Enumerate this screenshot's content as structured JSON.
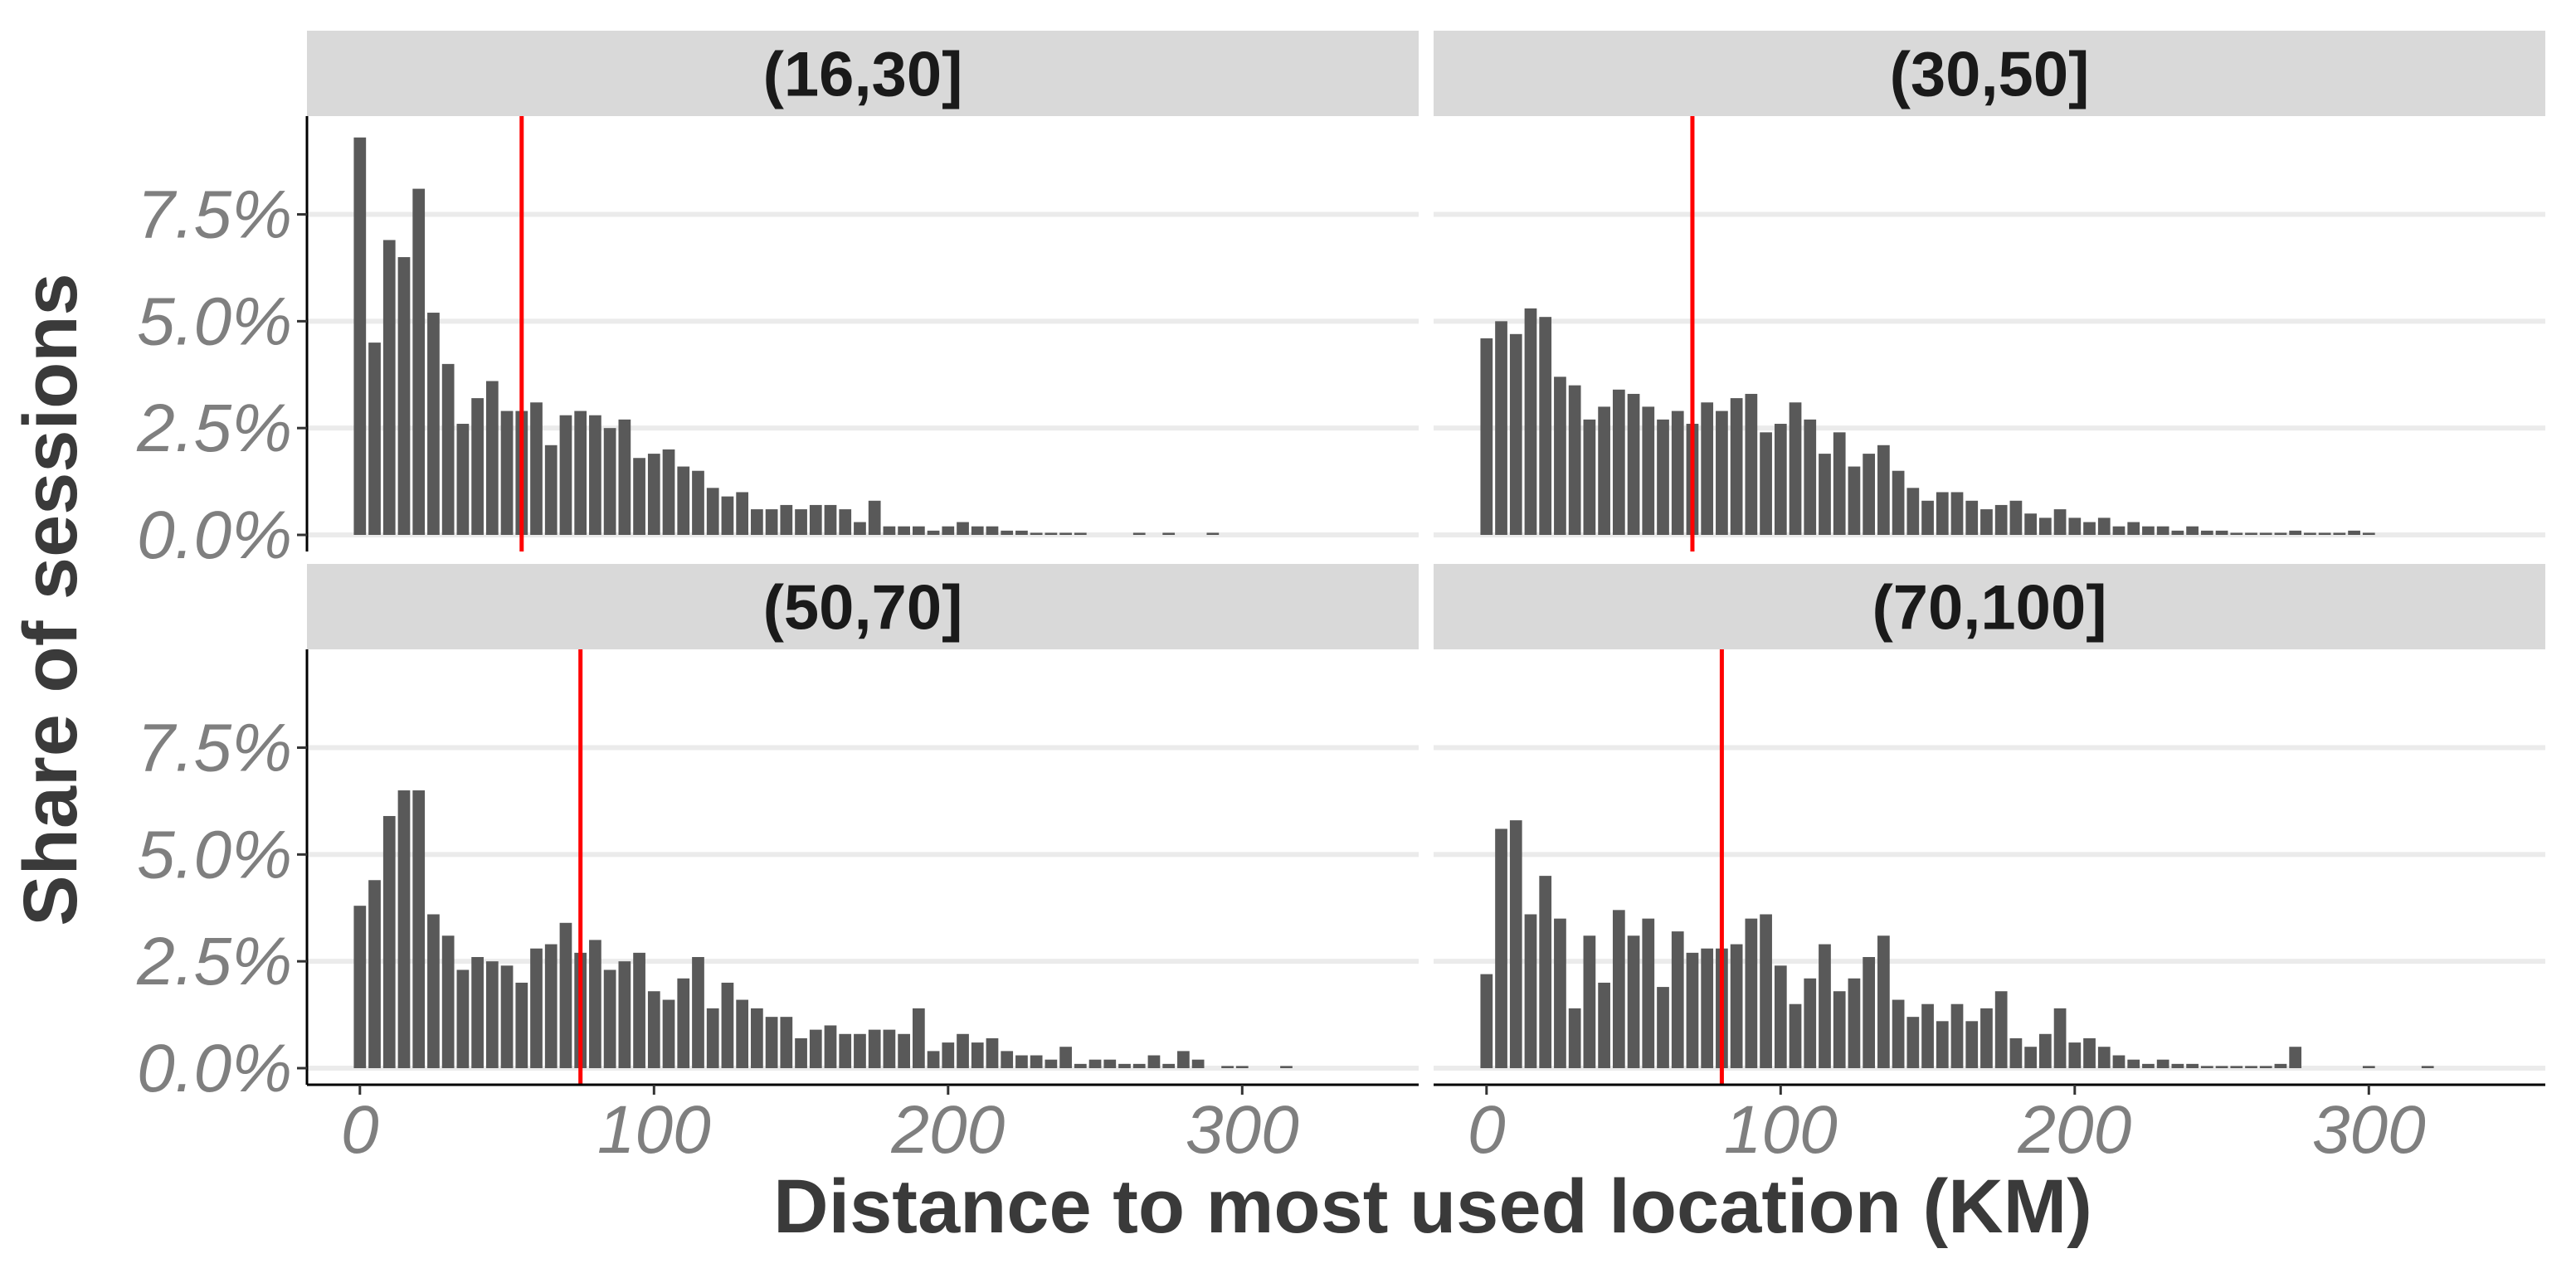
{
  "chart_data": {
    "type": "bar",
    "xlabel": "Distance to most used location (KM)",
    "ylabel": "Share of sessions",
    "y_ticks": [
      "0.0%",
      "2.5%",
      "5.0%",
      "7.5%"
    ],
    "y_tick_values": [
      0,
      2.5,
      5.0,
      7.5
    ],
    "x_ticks": [
      "0",
      "100",
      "200",
      "300"
    ],
    "x_tick_values": [
      0,
      100,
      200,
      300
    ],
    "xlim": [
      -18,
      360
    ],
    "ylim": [
      0,
      9.8
    ],
    "bin_width_km": 5,
    "grid": "horizontal",
    "colors": {
      "bar": "#595959",
      "median_line": "#ff0000",
      "strip": "#d9d9d9",
      "grid": "#ebebeb"
    },
    "panels": [
      {
        "label": "(16,30]",
        "vline": 55,
        "x": [
          0,
          5,
          10,
          15,
          20,
          25,
          30,
          35,
          40,
          45,
          50,
          55,
          60,
          65,
          70,
          75,
          80,
          85,
          90,
          95,
          100,
          105,
          110,
          115,
          120,
          125,
          130,
          135,
          140,
          145,
          150,
          155,
          160,
          165,
          170,
          175,
          180,
          185,
          190,
          195,
          200,
          205,
          210,
          215,
          220,
          225,
          230,
          235,
          240,
          245,
          265,
          275,
          290
        ],
        "values": [
          9.3,
          4.5,
          6.9,
          6.5,
          8.1,
          5.2,
          4.0,
          2.6,
          3.2,
          3.6,
          2.9,
          2.9,
          3.1,
          2.1,
          2.8,
          2.9,
          2.8,
          2.5,
          2.7,
          1.8,
          1.9,
          2.0,
          1.6,
          1.5,
          1.1,
          0.9,
          1.0,
          0.6,
          0.6,
          0.7,
          0.6,
          0.7,
          0.7,
          0.6,
          0.3,
          0.8,
          0.2,
          0.2,
          0.2,
          0.1,
          0.2,
          0.3,
          0.2,
          0.2,
          0.1,
          0.1,
          0.05,
          0.05,
          0.05,
          0.05,
          0.05,
          0.05,
          0.05
        ]
      },
      {
        "label": "(30,50]",
        "vline": 70,
        "x": [
          0,
          5,
          10,
          15,
          20,
          25,
          30,
          35,
          40,
          45,
          50,
          55,
          60,
          65,
          70,
          75,
          80,
          85,
          90,
          95,
          100,
          105,
          110,
          115,
          120,
          125,
          130,
          135,
          140,
          145,
          150,
          155,
          160,
          165,
          170,
          175,
          180,
          185,
          190,
          195,
          200,
          205,
          210,
          215,
          220,
          225,
          230,
          235,
          240,
          245,
          250,
          255,
          260,
          265,
          270,
          275,
          280,
          285,
          290,
          295,
          300
        ],
        "values": [
          4.6,
          5.0,
          4.7,
          5.3,
          5.1,
          3.7,
          3.5,
          2.7,
          3.0,
          3.4,
          3.3,
          3.0,
          2.7,
          2.9,
          2.6,
          3.1,
          2.9,
          3.2,
          3.3,
          2.4,
          2.6,
          3.1,
          2.7,
          1.9,
          2.4,
          1.6,
          1.9,
          2.1,
          1.5,
          1.1,
          0.8,
          1.0,
          1.0,
          0.8,
          0.6,
          0.7,
          0.8,
          0.5,
          0.4,
          0.6,
          0.4,
          0.3,
          0.4,
          0.2,
          0.3,
          0.2,
          0.2,
          0.1,
          0.2,
          0.1,
          0.1,
          0.05,
          0.05,
          0.05,
          0.05,
          0.1,
          0.05,
          0.05,
          0.05,
          0.1,
          0.05
        ]
      },
      {
        "label": "(50,70]",
        "vline": 75,
        "x": [
          0,
          5,
          10,
          15,
          20,
          25,
          30,
          35,
          40,
          45,
          50,
          55,
          60,
          65,
          70,
          75,
          80,
          85,
          90,
          95,
          100,
          105,
          110,
          115,
          120,
          125,
          130,
          135,
          140,
          145,
          150,
          155,
          160,
          165,
          170,
          175,
          180,
          185,
          190,
          195,
          200,
          205,
          210,
          215,
          220,
          225,
          230,
          235,
          240,
          245,
          250,
          255,
          260,
          265,
          270,
          275,
          280,
          285,
          295,
          300,
          315
        ],
        "values": [
          3.8,
          4.4,
          5.9,
          6.5,
          6.5,
          3.6,
          3.1,
          2.3,
          2.6,
          2.5,
          2.4,
          2.0,
          2.8,
          2.9,
          3.4,
          2.7,
          3.0,
          2.3,
          2.5,
          2.7,
          1.8,
          1.6,
          2.1,
          2.6,
          1.4,
          2.0,
          1.6,
          1.4,
          1.2,
          1.2,
          0.7,
          0.9,
          1.0,
          0.8,
          0.8,
          0.9,
          0.9,
          0.8,
          1.4,
          0.4,
          0.6,
          0.8,
          0.6,
          0.7,
          0.4,
          0.3,
          0.3,
          0.2,
          0.5,
          0.1,
          0.2,
          0.2,
          0.1,
          0.1,
          0.3,
          0.1,
          0.4,
          0.2,
          0.05,
          0.05,
          0.05
        ]
      },
      {
        "label": "(70,100]",
        "vline": 80,
        "x": [
          0,
          5,
          10,
          15,
          20,
          25,
          30,
          35,
          40,
          45,
          50,
          55,
          60,
          65,
          70,
          75,
          80,
          85,
          90,
          95,
          100,
          105,
          110,
          115,
          120,
          125,
          130,
          135,
          140,
          145,
          150,
          155,
          160,
          165,
          170,
          175,
          180,
          185,
          190,
          195,
          200,
          205,
          210,
          215,
          220,
          225,
          230,
          235,
          240,
          245,
          250,
          255,
          260,
          265,
          270,
          275,
          300,
          320
        ],
        "values": [
          2.2,
          5.6,
          5.8,
          3.6,
          4.5,
          3.5,
          1.4,
          3.1,
          2.0,
          3.7,
          3.1,
          3.5,
          1.9,
          3.2,
          2.7,
          2.8,
          2.8,
          2.9,
          3.5,
          3.6,
          2.4,
          1.5,
          2.1,
          2.9,
          1.8,
          2.1,
          2.6,
          3.1,
          1.6,
          1.2,
          1.5,
          1.1,
          1.5,
          1.1,
          1.4,
          1.8,
          0.7,
          0.5,
          0.8,
          1.4,
          0.6,
          0.7,
          0.5,
          0.3,
          0.2,
          0.1,
          0.2,
          0.1,
          0.1,
          0.05,
          0.05,
          0.05,
          0.05,
          0.05,
          0.1,
          0.5,
          0.05,
          0.05
        ]
      }
    ]
  }
}
